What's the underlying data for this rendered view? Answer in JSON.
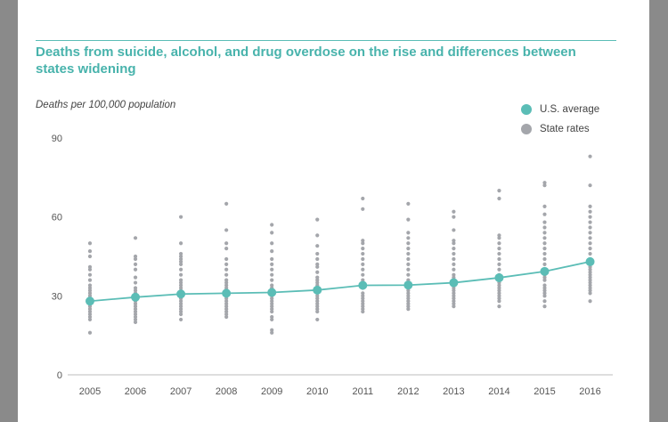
{
  "colors": {
    "us_average": "#5bbdb6",
    "state_rates": "#a4a6ab"
  },
  "chart_data": {
    "type": "scatter",
    "title": "Deaths from suicide, alcohol, and drug overdose on the rise and differences between states widening",
    "xlabel": "",
    "ylabel": "Deaths per 100,000 population",
    "ylim": [
      0,
      90
    ],
    "yticks": [
      0,
      30,
      60,
      90
    ],
    "categories": [
      "2005",
      "2006",
      "2007",
      "2008",
      "2009",
      "2010",
      "2011",
      "2012",
      "2013",
      "2014",
      "2015",
      "2016"
    ],
    "grid": false,
    "legend_position": "top-right",
    "series": [
      {
        "name": "U.S. average",
        "type": "line",
        "values": [
          28,
          29.5,
          30.7,
          31,
          31.3,
          32.2,
          34,
          34.1,
          35,
          36.9,
          39.3,
          43
        ]
      },
      {
        "name": "State rates",
        "type": "scatter",
        "values": [
          [
            16,
            21,
            22,
            23,
            24,
            25,
            26,
            27,
            28,
            29,
            30,
            31,
            32,
            33,
            34,
            36,
            38,
            40,
            41,
            45,
            47,
            50
          ],
          [
            20,
            21,
            22,
            23,
            24,
            25,
            26,
            27,
            28,
            29,
            30,
            31,
            32,
            33,
            35,
            37,
            40,
            42,
            44,
            45,
            52
          ],
          [
            21,
            23,
            24,
            25,
            26,
            27,
            28,
            29,
            30,
            31,
            32,
            33,
            34,
            35,
            36,
            38,
            40,
            42,
            43,
            44,
            45,
            46,
            50,
            60
          ],
          [
            22,
            23,
            24,
            25,
            26,
            27,
            28,
            29,
            30,
            31,
            32,
            33,
            34,
            35,
            36,
            38,
            40,
            42,
            44,
            48,
            50,
            55,
            65
          ],
          [
            16,
            17,
            21,
            22,
            24,
            25,
            26,
            27,
            28,
            29,
            30,
            31,
            32,
            33,
            34,
            36,
            38,
            40,
            42,
            44,
            47,
            50,
            54,
            57
          ],
          [
            21,
            24,
            25,
            26,
            27,
            28,
            29,
            30,
            31,
            32,
            33,
            34,
            35,
            36,
            37,
            39,
            41,
            42,
            44,
            46,
            49,
            53,
            59
          ],
          [
            24,
            25,
            26,
            27,
            28,
            29,
            30,
            31,
            33,
            34,
            35,
            36,
            38,
            40,
            42,
            44,
            46,
            48,
            50,
            51,
            63,
            67
          ],
          [
            25,
            26,
            27,
            28,
            29,
            30,
            31,
            32,
            33,
            34,
            35,
            36,
            38,
            40,
            42,
            44,
            46,
            48,
            50,
            52,
            54,
            59,
            65
          ],
          [
            26,
            27,
            28,
            29,
            30,
            31,
            32,
            33,
            34,
            35,
            36,
            37,
            38,
            40,
            42,
            44,
            46,
            48,
            50,
            51,
            55,
            60,
            62
          ],
          [
            26,
            28,
            29,
            30,
            31,
            32,
            33,
            34,
            35,
            36,
            37,
            38,
            40,
            42,
            44,
            46,
            48,
            50,
            52,
            53,
            67,
            70
          ],
          [
            26,
            28,
            30,
            31,
            32,
            33,
            34,
            36,
            37,
            38,
            40,
            42,
            44,
            46,
            48,
            50,
            52,
            54,
            56,
            58,
            61,
            64,
            72,
            73
          ],
          [
            28,
            31,
            32,
            33,
            34,
            35,
            36,
            37,
            38,
            39,
            40,
            41,
            42,
            44,
            46,
            48,
            50,
            52,
            54,
            56,
            58,
            60,
            62,
            64,
            72,
            83
          ]
        ]
      }
    ]
  }
}
